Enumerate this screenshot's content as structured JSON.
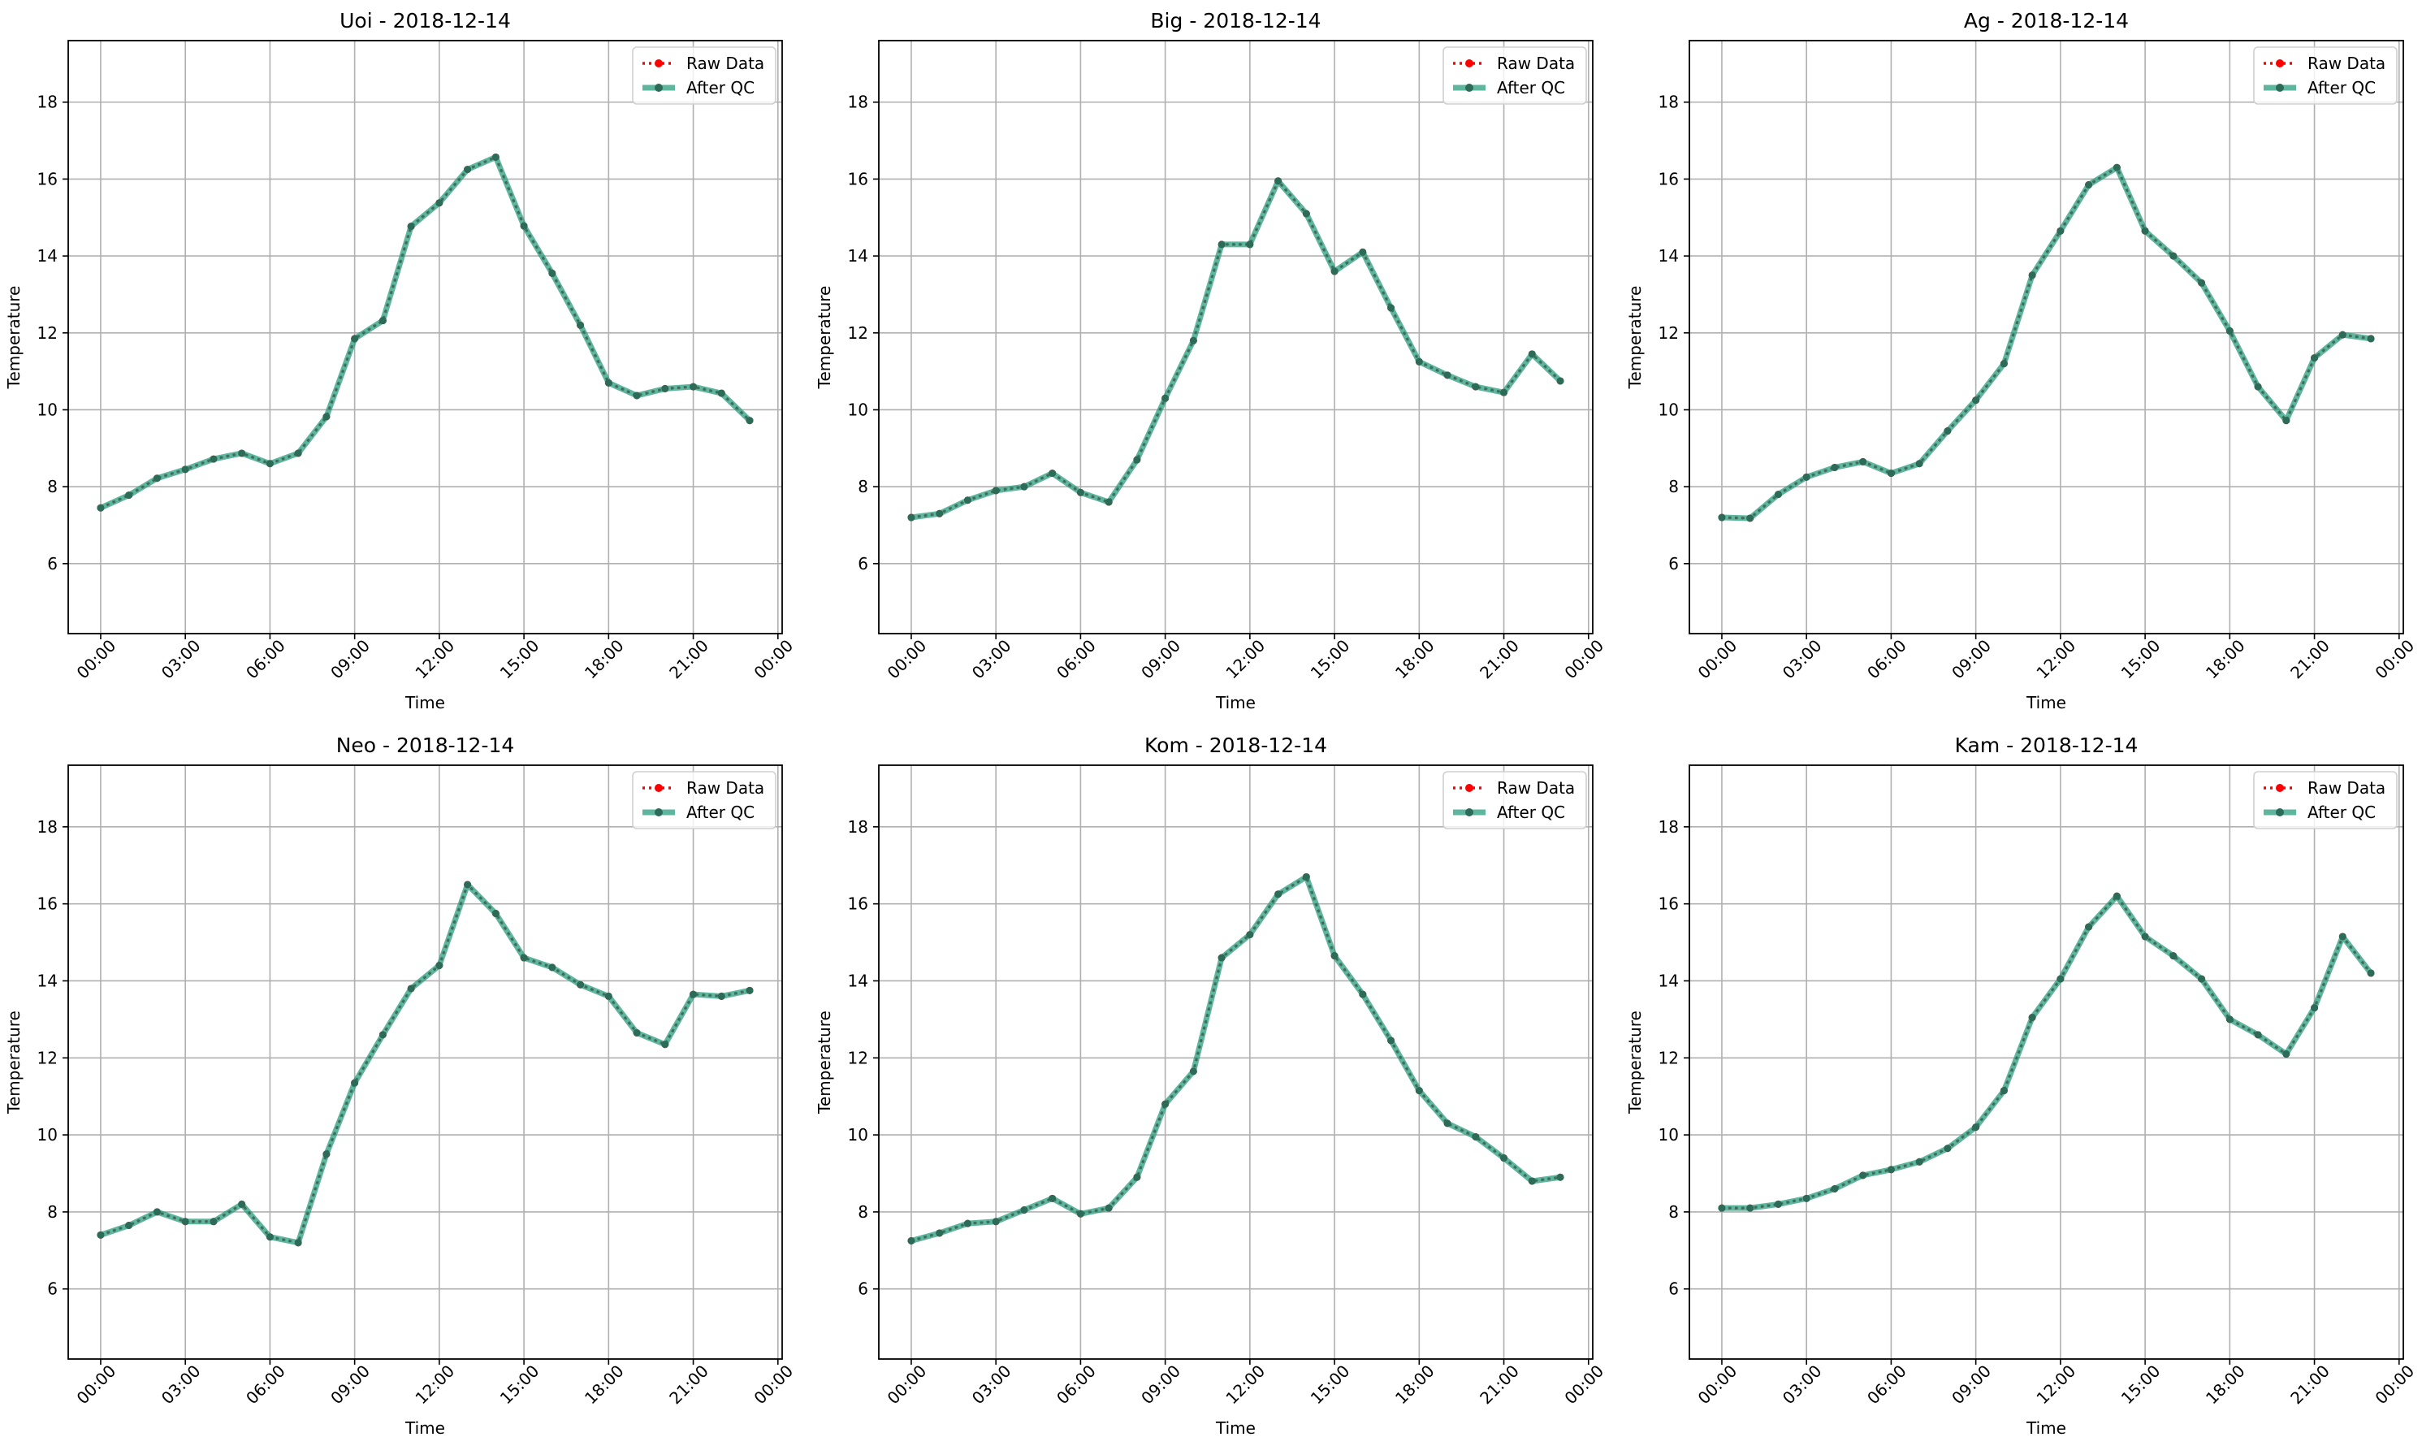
{
  "colors": {
    "raw": "#ff0000",
    "qc": "#2a9d7f",
    "marker": "#2b6b58",
    "grid": "#b0b0b0"
  },
  "chart_data": [
    {
      "type": "line",
      "title": "Uoi - 2018-12-14",
      "xlabel": "Time",
      "ylabel": "Temperature",
      "x_hours": [
        0,
        1,
        2,
        3,
        4,
        5,
        6,
        7,
        8,
        9,
        10,
        11,
        12,
        13,
        14,
        15,
        16,
        17,
        18,
        19,
        20,
        21,
        22,
        23
      ],
      "series": [
        {
          "name": "Raw Data",
          "values": [
            7.45,
            7.78,
            8.22,
            8.45,
            8.72,
            8.87,
            8.6,
            8.87,
            9.82,
            11.85,
            12.32,
            14.77,
            15.38,
            16.25,
            16.57,
            14.78,
            13.55,
            12.2,
            10.7,
            10.37,
            10.55,
            10.6,
            10.43,
            9.72
          ]
        },
        {
          "name": "After QC",
          "values": [
            7.45,
            7.78,
            8.22,
            8.45,
            8.72,
            8.87,
            8.6,
            8.87,
            9.82,
            11.85,
            12.32,
            14.77,
            15.38,
            16.25,
            16.57,
            14.78,
            13.55,
            12.2,
            10.7,
            10.37,
            10.55,
            10.6,
            10.43,
            9.72
          ]
        }
      ]
    },
    {
      "type": "line",
      "title": "Big - 2018-12-14",
      "xlabel": "Time",
      "ylabel": "Temperature",
      "x_hours": [
        0,
        1,
        2,
        3,
        4,
        5,
        6,
        7,
        8,
        9,
        10,
        11,
        12,
        13,
        14,
        15,
        16,
        17,
        18,
        19,
        20,
        21,
        22,
        23
      ],
      "series": [
        {
          "name": "Raw Data",
          "values": [
            7.2,
            7.3,
            7.65,
            7.9,
            8.0,
            8.35,
            7.85,
            7.6,
            8.7,
            10.3,
            11.8,
            14.3,
            14.3,
            15.95,
            15.1,
            13.6,
            14.1,
            12.65,
            11.25,
            10.9,
            10.6,
            10.45,
            11.45,
            10.75
          ]
        },
        {
          "name": "After QC",
          "values": [
            7.2,
            7.3,
            7.65,
            7.9,
            8.0,
            8.35,
            7.85,
            7.6,
            8.7,
            10.3,
            11.8,
            14.3,
            14.3,
            15.95,
            15.1,
            13.6,
            14.1,
            12.65,
            11.25,
            10.9,
            10.6,
            10.45,
            11.45,
            10.75
          ]
        }
      ]
    },
    {
      "type": "line",
      "title": "Ag - 2018-12-14",
      "xlabel": "Time",
      "ylabel": "Temperature",
      "x_hours": [
        0,
        1,
        2,
        3,
        4,
        5,
        6,
        7,
        8,
        9,
        10,
        11,
        12,
        13,
        14,
        15,
        16,
        17,
        18,
        19,
        20,
        21,
        22,
        23
      ],
      "series": [
        {
          "name": "Raw Data",
          "values": [
            7.2,
            7.18,
            7.8,
            8.25,
            8.5,
            8.65,
            8.35,
            8.6,
            9.45,
            10.25,
            11.2,
            13.5,
            14.65,
            15.85,
            16.3,
            14.65,
            14.0,
            13.3,
            12.05,
            10.6,
            9.72,
            11.35,
            11.95,
            11.85
          ]
        },
        {
          "name": "After QC",
          "values": [
            7.2,
            7.18,
            7.8,
            8.25,
            8.5,
            8.65,
            8.35,
            8.6,
            9.45,
            10.25,
            11.2,
            13.5,
            14.65,
            15.85,
            16.3,
            14.65,
            14.0,
            13.3,
            12.05,
            10.6,
            9.72,
            11.35,
            11.95,
            11.85
          ]
        }
      ]
    },
    {
      "type": "line",
      "title": "Neo - 2018-12-14",
      "xlabel": "Time",
      "ylabel": "Temperature",
      "x_hours": [
        0,
        1,
        2,
        3,
        4,
        5,
        6,
        7,
        8,
        9,
        10,
        11,
        12,
        13,
        14,
        15,
        16,
        17,
        18,
        19,
        20,
        21,
        22,
        23
      ],
      "series": [
        {
          "name": "Raw Data",
          "values": [
            7.4,
            7.65,
            8.0,
            7.75,
            7.75,
            8.2,
            7.35,
            7.2,
            9.5,
            11.35,
            12.6,
            13.8,
            14.4,
            16.5,
            15.75,
            14.6,
            14.35,
            13.9,
            13.6,
            12.65,
            12.35,
            13.65,
            13.6,
            13.75
          ]
        },
        {
          "name": "After QC",
          "values": [
            7.4,
            7.65,
            8.0,
            7.75,
            7.75,
            8.2,
            7.35,
            7.2,
            9.5,
            11.35,
            12.6,
            13.8,
            14.4,
            16.5,
            15.75,
            14.6,
            14.35,
            13.9,
            13.6,
            12.65,
            12.35,
            13.65,
            13.6,
            13.75
          ]
        }
      ]
    },
    {
      "type": "line",
      "title": "Kom - 2018-12-14",
      "xlabel": "Time",
      "ylabel": "Temperature",
      "x_hours": [
        0,
        1,
        2,
        3,
        4,
        5,
        6,
        7,
        8,
        9,
        10,
        11,
        12,
        13,
        14,
        15,
        16,
        17,
        18,
        19,
        20,
        21,
        22,
        23
      ],
      "series": [
        {
          "name": "Raw Data",
          "values": [
            7.25,
            7.45,
            7.7,
            7.75,
            8.05,
            8.35,
            7.95,
            8.1,
            8.9,
            10.8,
            11.65,
            14.6,
            15.2,
            16.25,
            16.7,
            14.65,
            13.65,
            12.45,
            11.15,
            10.3,
            9.95,
            9.4,
            8.8,
            8.9
          ]
        },
        {
          "name": "After QC",
          "values": [
            7.25,
            7.45,
            7.7,
            7.75,
            8.05,
            8.35,
            7.95,
            8.1,
            8.9,
            10.8,
            11.65,
            14.6,
            15.2,
            16.25,
            16.7,
            14.65,
            13.65,
            12.45,
            11.15,
            10.3,
            9.95,
            9.4,
            8.8,
            8.9
          ]
        }
      ]
    },
    {
      "type": "line",
      "title": "Kam - 2018-12-14",
      "xlabel": "Time",
      "ylabel": "Temperature",
      "x_hours": [
        0,
        1,
        2,
        3,
        4,
        5,
        6,
        7,
        8,
        9,
        10,
        11,
        12,
        13,
        14,
        15,
        16,
        17,
        18,
        19,
        20,
        21,
        22,
        23
      ],
      "series": [
        {
          "name": "Raw Data",
          "values": [
            8.1,
            8.1,
            8.2,
            8.35,
            8.6,
            8.95,
            9.1,
            9.3,
            9.65,
            10.2,
            11.15,
            13.05,
            14.05,
            15.4,
            16.2,
            15.15,
            14.65,
            14.05,
            13.0,
            12.6,
            12.1,
            13.3,
            15.15,
            14.2
          ]
        },
        {
          "name": "After QC",
          "values": [
            8.1,
            8.1,
            8.2,
            8.35,
            8.6,
            8.95,
            9.1,
            9.3,
            9.65,
            10.2,
            11.15,
            13.05,
            14.05,
            15.4,
            16.2,
            15.15,
            14.65,
            14.05,
            13.0,
            12.6,
            12.1,
            13.3,
            15.15,
            14.2
          ]
        }
      ]
    }
  ],
  "axes": {
    "ylim": [
      4.18,
      19.6
    ],
    "xlim_hours": [
      -1.15,
      24.15
    ],
    "yticks": [
      6,
      8,
      10,
      12,
      14,
      16,
      18
    ],
    "xtick_hours": [
      0,
      3,
      6,
      9,
      12,
      15,
      18,
      21,
      24
    ],
    "xtick_labels": [
      "00:00",
      "03:00",
      "06:00",
      "09:00",
      "12:00",
      "15:00",
      "18:00",
      "21:00",
      "00:00"
    ],
    "grid": true,
    "legend_position": "top-right"
  }
}
